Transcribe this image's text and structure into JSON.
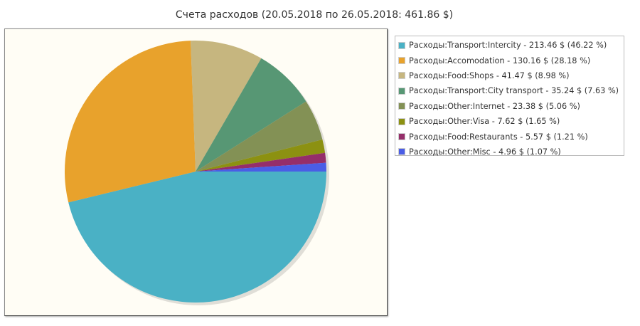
{
  "chart_data": {
    "type": "pie",
    "title": "Счета расходов (20.05.2018 по 26.05.2018: 461.86 $)",
    "start_angle_deg": 0,
    "direction": "clockwise",
    "legend_placement": "right",
    "slices": [
      {
        "label": "Расходы:Transport:Intercity - 213.46 $ (46.22 %)",
        "value": 213.46,
        "percent": 46.22,
        "color": "#4ab1c5"
      },
      {
        "label": "Расходы:Accomodation - 130.16 $ (28.18 %)",
        "value": 130.16,
        "percent": 28.18,
        "color": "#e8a22c"
      },
      {
        "label": "Расходы:Food:Shops - 41.47 $ (8.98 %)",
        "value": 41.47,
        "percent": 8.98,
        "color": "#c6b67f"
      },
      {
        "label": "Расходы:Transport:City transport - 35.24 $ (7.63 %)",
        "value": 35.24,
        "percent": 7.63,
        "color": "#579774"
      },
      {
        "label": "Расходы:Other:Internet - 23.38 $ (5.06 %)",
        "value": 23.38,
        "percent": 5.06,
        "color": "#839155"
      },
      {
        "label": "Расходы:Other:Visa - 7.62 $ (1.65 %)",
        "value": 7.62,
        "percent": 1.65,
        "color": "#8c9111"
      },
      {
        "label": "Расходы:Food:Restaurants - 5.57 $ (1.21 %)",
        "value": 5.57,
        "percent": 1.21,
        "color": "#952e6a"
      },
      {
        "label": "Расходы:Other:Misc - 4.96 $ (1.07 %)",
        "value": 4.96,
        "percent": 1.07,
        "color": "#4a5de6"
      }
    ]
  }
}
